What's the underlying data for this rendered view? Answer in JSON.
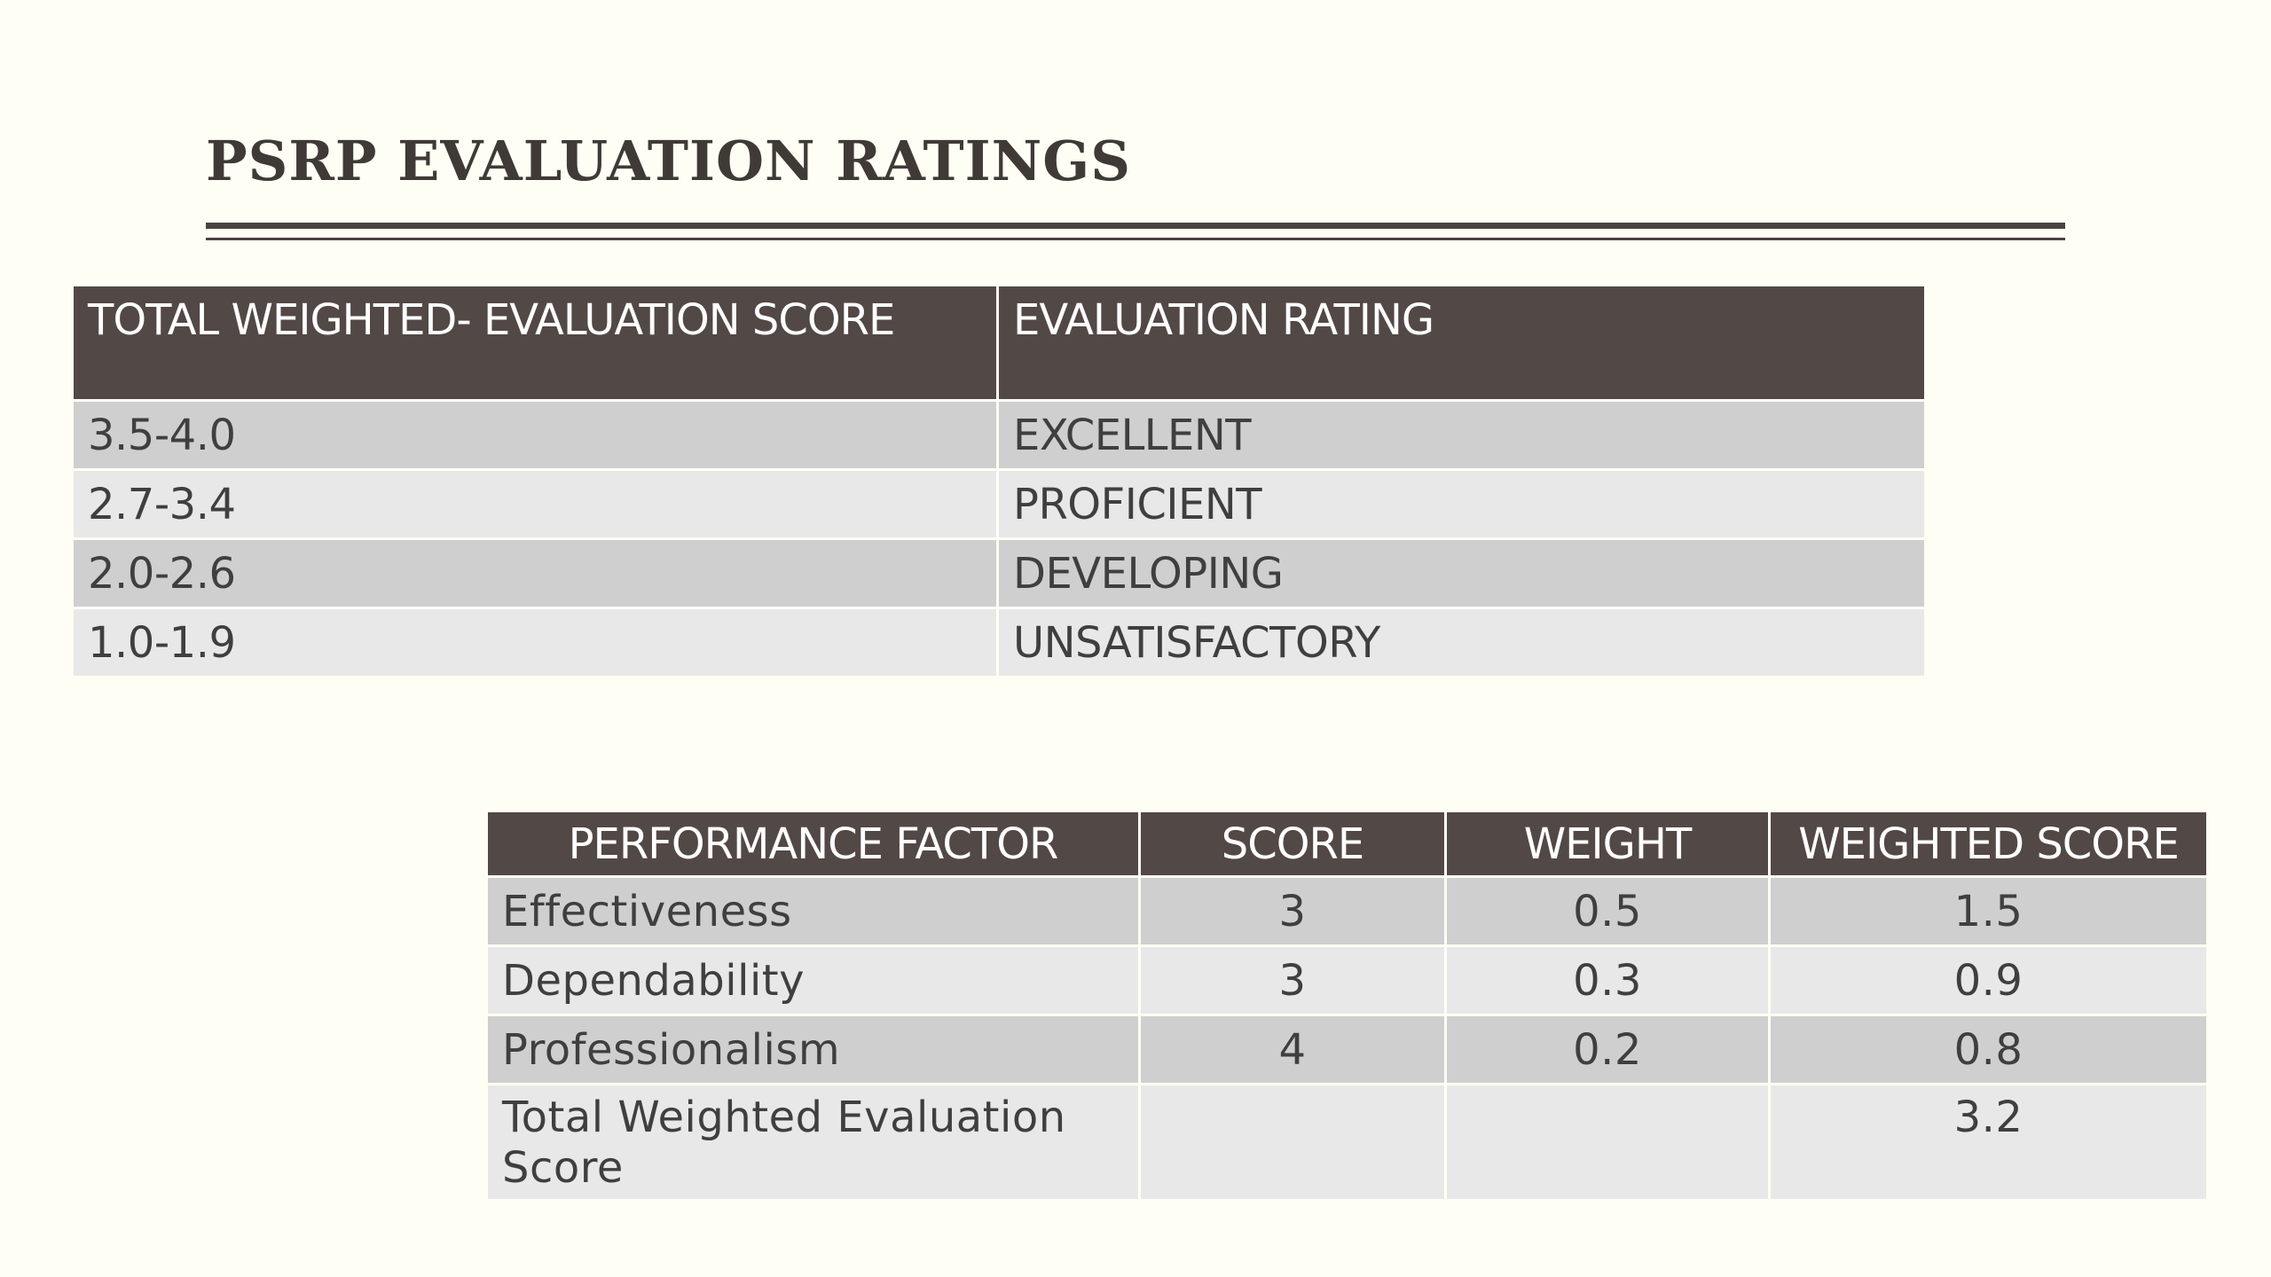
{
  "slide": {
    "title": "PSRP EVALUATION RATINGS"
  },
  "ratings_table": {
    "headers": [
      "TOTAL WEIGHTED- EVALUATION SCORE",
      "EVALUATION RATING"
    ],
    "rows": [
      {
        "score": "3.5-4.0",
        "rating": "EXCELLENT"
      },
      {
        "score": "2.7-3.4",
        "rating": "PROFICIENT"
      },
      {
        "score": "2.0-2.6",
        "rating": "DEVELOPING"
      },
      {
        "score": "1.0-1.9",
        "rating": "UNSATISFACTORY"
      }
    ]
  },
  "performance_table": {
    "headers": [
      "PERFORMANCE FACTOR",
      "SCORE",
      "WEIGHT",
      "WEIGHTED SCORE"
    ],
    "rows": [
      {
        "factor": "Effectiveness",
        "score": "3",
        "weight": "0.5",
        "weighted": "1.5"
      },
      {
        "factor": "Dependability",
        "score": "3",
        "weight": "0.3",
        "weighted": "0.9"
      },
      {
        "factor": "Professionalism",
        "score": "4",
        "weight": "0.2",
        "weighted": "0.8"
      },
      {
        "factor": "Total Weighted Evaluation Score",
        "score": "",
        "weight": "",
        "weighted": "3.2"
      }
    ]
  }
}
